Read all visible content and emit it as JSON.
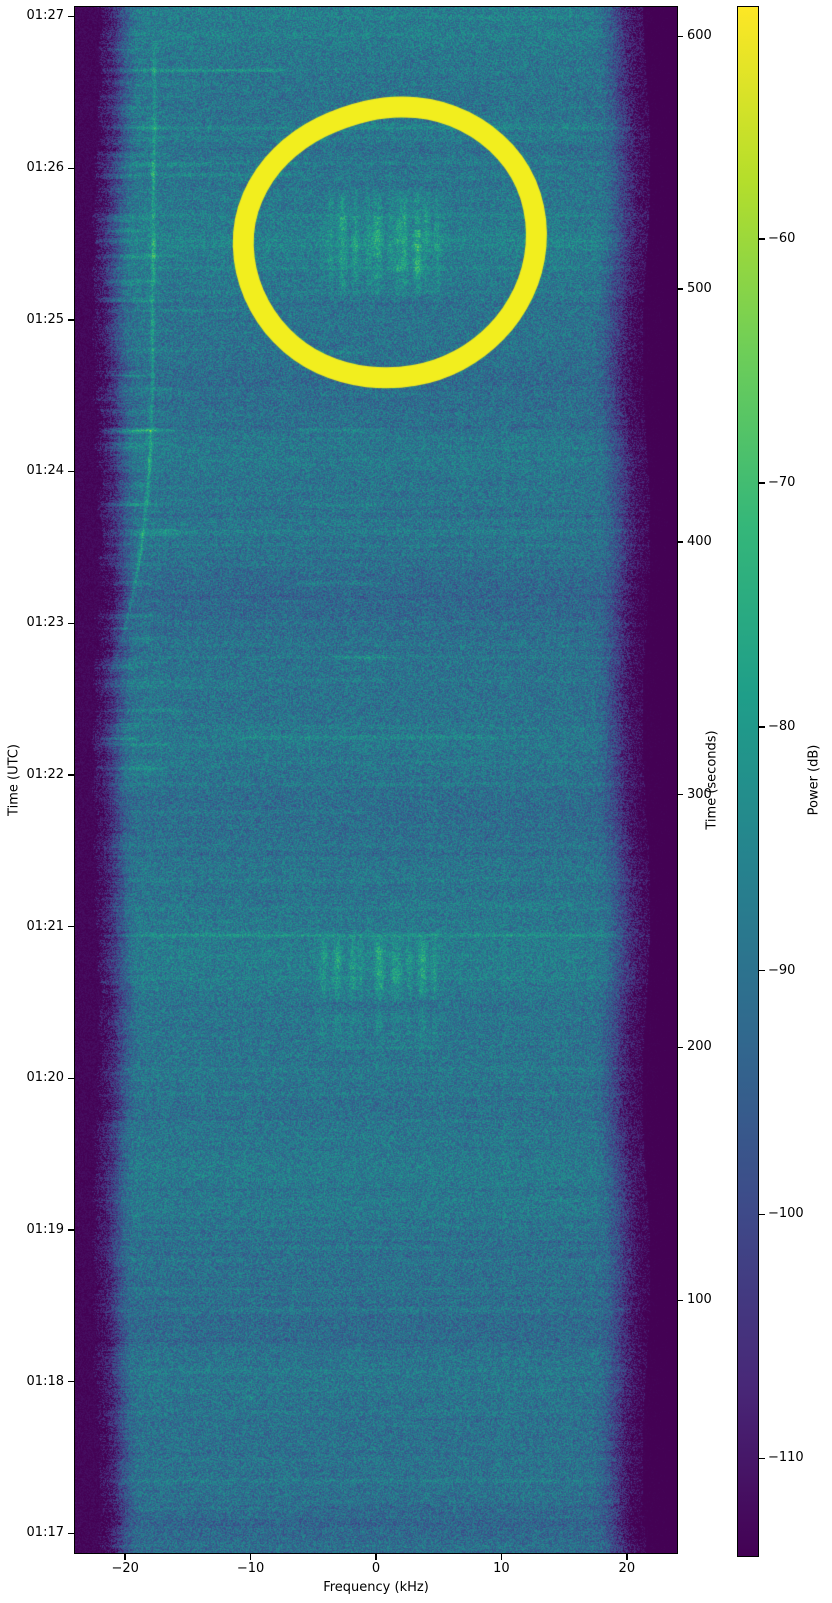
{
  "chart_data": {
    "type": "heatmap",
    "subtype": "radio-spectrogram-waterfall",
    "title": "",
    "xlabel": "Frequency (kHz)",
    "ylabel_left": "Time (UTC)",
    "ylabel_right": "Time (seconds)",
    "colorbar_label": "Power (dB)",
    "colormap": "viridis",
    "grid": false,
    "xlim_khz": [
      -24,
      24
    ],
    "ylim_seconds": [
      0,
      611.5
    ],
    "power_range_db": [
      -114,
      -50.5
    ],
    "noise_floor_db": -90,
    "band_edge_db": -113,
    "x_ticks": [
      {
        "label": "−20",
        "khz": -20
      },
      {
        "label": "−10",
        "khz": -10
      },
      {
        "label": "0",
        "khz": 0
      },
      {
        "label": "10",
        "khz": 10
      },
      {
        "label": "20",
        "khz": 20
      }
    ],
    "y_ticks_utc": [
      {
        "label": "01:27",
        "seconds": 607.8
      },
      {
        "label": "01:26",
        "seconds": 547.8
      },
      {
        "label": "01:25",
        "seconds": 487.8
      },
      {
        "label": "01:24",
        "seconds": 427.8
      },
      {
        "label": "01:23",
        "seconds": 367.8
      },
      {
        "label": "01:22",
        "seconds": 307.8
      },
      {
        "label": "01:21",
        "seconds": 247.8
      },
      {
        "label": "01:20",
        "seconds": 187.8
      },
      {
        "label": "01:19",
        "seconds": 127.8
      },
      {
        "label": "01:18",
        "seconds": 67.8
      },
      {
        "label": "01:17",
        "seconds": 7.8
      }
    ],
    "y_ticks_seconds": [
      {
        "label": "600",
        "seconds": 600
      },
      {
        "label": "500",
        "seconds": 500
      },
      {
        "label": "400",
        "seconds": 400
      },
      {
        "label": "300",
        "seconds": 300
      },
      {
        "label": "200",
        "seconds": 200
      },
      {
        "label": "100",
        "seconds": 100
      }
    ],
    "colorbar_ticks": [
      {
        "label": "−60",
        "db": -60
      },
      {
        "label": "−70",
        "db": -70
      },
      {
        "label": "−80",
        "db": -80
      },
      {
        "label": "−90",
        "db": -90
      },
      {
        "label": "−100",
        "db": -100
      },
      {
        "label": "−110",
        "db": -110
      }
    ],
    "colors": {
      "annotation": "#f2ee1e",
      "colormap_stops": [
        "#440154",
        "#482878",
        "#3e4a89",
        "#31688e",
        "#26828e",
        "#1f9e89",
        "#35b779",
        "#6ece58",
        "#b5de2b",
        "#fde725"
      ]
    },
    "annotation_circle": {
      "shape": "hand-drawn-ellipse",
      "color": "#f2ee1e",
      "center_khz": 1.2,
      "center_seconds": 517,
      "radius_khz": 11.45,
      "radius_seconds": 55.6,
      "stroke_px": 21
    },
    "features": {
      "doppler_trace": {
        "peak_db": -76,
        "points_seconds_khz": [
          [
            598.5,
            -17.66
          ],
          [
            563,
            -17.72
          ],
          [
            527,
            -17.78
          ],
          [
            491,
            -17.84
          ],
          [
            455,
            -17.9
          ],
          [
            429,
            -18.1
          ],
          [
            412.6,
            -18.4
          ],
          [
            396,
            -18.8
          ],
          [
            380,
            -19.4
          ],
          [
            366.5,
            -20.0
          ],
          [
            354.5,
            -20.7
          ],
          [
            344.5,
            -21.5
          ],
          [
            334.5,
            -22.4
          ],
          [
            324.5,
            -23.3
          ]
        ]
      },
      "burst_upper": {
        "seconds": [
          497,
          540
        ],
        "stripes_khz": [
          -3.7,
          -2.7,
          -1.65,
          -0.6,
          0.05,
          1.15,
          1.75,
          2.25,
          3.3,
          4.0,
          4.85
        ],
        "stripe_db": [
          8,
          14,
          10,
          7,
          13,
          6,
          9,
          12,
          15,
          9,
          7
        ],
        "stripe_width_khz": [
          0.3,
          0.45,
          0.35,
          0.3,
          0.5,
          0.3,
          0.4,
          0.35,
          0.45,
          0.3,
          0.35
        ]
      },
      "burst_lower": {
        "seconds": [
          218,
          245
        ],
        "stripes_khz": [
          -4.2,
          -3.1,
          -1.9,
          -1.3,
          0.25,
          1.45,
          1.85,
          2.6,
          3.7,
          4.6
        ],
        "stripe_db": [
          9,
          15,
          11,
          8,
          14,
          10,
          7,
          9,
          13,
          9
        ],
        "stripe_width_khz": [
          0.35,
          0.45,
          0.35,
          0.3,
          0.5,
          0.35,
          0.3,
          0.3,
          0.45,
          0.3
        ]
      },
      "burst_echo": {
        "seconds": [
          201,
          216
        ],
        "scale_of": "burst_lower",
        "scale": 0.45
      },
      "vertical_lines": [
        {
          "khz": 10.2,
          "seconds": [
            0,
            611
          ],
          "db": 1.3
        },
        {
          "khz": 6.9,
          "seconds": [
            308,
            451
          ],
          "db": 1.0
        }
      ],
      "blob": {
        "khz": -10.1,
        "seconds": 61.8,
        "db": 7
      },
      "interference_streaks_t_f0_f1_db": [
        [
          607.5,
          -10,
          24,
          2.5
        ],
        [
          586.6,
          -24,
          -6.9,
          7
        ],
        [
          586.6,
          -24,
          24,
          1.5
        ],
        [
          581,
          -24,
          -13,
          3
        ],
        [
          576.3,
          -24,
          -14,
          3.5
        ],
        [
          565.2,
          -6,
          20,
          2.5
        ],
        [
          549,
          -24,
          -13,
          4.5
        ],
        [
          545.4,
          -24,
          -6,
          3.5
        ],
        [
          529.2,
          -24,
          24,
          2
        ],
        [
          519.3,
          -24,
          24,
          2.8
        ],
        [
          508.3,
          -24,
          24,
          2.2
        ],
        [
          498.8,
          -24,
          24,
          2.4
        ],
        [
          491.7,
          -24,
          -10,
          3.5
        ],
        [
          475.1,
          -7,
          0,
          3.5
        ],
        [
          444.6,
          -7,
          1.2,
          4.5
        ],
        [
          432.4,
          -24,
          24,
          2
        ],
        [
          414.6,
          -6,
          0.8,
          4.5
        ],
        [
          408.6,
          -24,
          24,
          1.8
        ],
        [
          383.7,
          -6.7,
          1,
          4.5
        ],
        [
          368.3,
          -24,
          24,
          1.8
        ],
        [
          354.4,
          -3.7,
          1.6,
          5
        ],
        [
          342.9,
          -24,
          -10,
          3.5
        ],
        [
          322.8,
          -11.7,
          10.2,
          4
        ],
        [
          312.9,
          -24,
          24,
          1.8
        ],
        [
          304.2,
          -24,
          24,
          2.6
        ],
        [
          293.1,
          -24,
          0,
          2.6
        ],
        [
          266.2,
          -24,
          24,
          2.2
        ],
        [
          257.1,
          0,
          20,
          2.6
        ],
        [
          200.2,
          -4.5,
          5.5,
          4
        ],
        [
          171.3,
          1,
          10,
          2.5
        ],
        [
          133.7,
          -24,
          24,
          2.2
        ],
        [
          121.1,
          -10,
          6,
          2.2
        ],
        [
          29,
          -24,
          24,
          2.2
        ],
        [
          17.9,
          -24,
          -5,
          2.6
        ],
        [
          3,
          -24,
          24,
          3.5
        ]
      ]
    }
  }
}
